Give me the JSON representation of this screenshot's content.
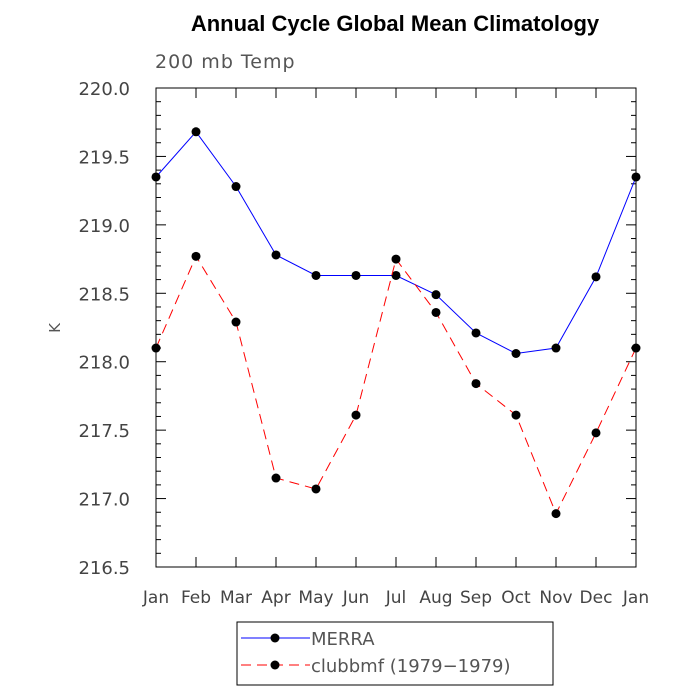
{
  "chart_data": {
    "type": "line",
    "title": "Annual Cycle Global Mean Climatology",
    "subtitle": "200 mb Temp",
    "xlabel": "",
    "ylabel": "K",
    "ylim": [
      216.5,
      220.0
    ],
    "yticks": [
      "216.5",
      "217.0",
      "217.5",
      "218.0",
      "218.5",
      "219.0",
      "219.5",
      "220.0"
    ],
    "categories": [
      "Jan",
      "Feb",
      "Mar",
      "Apr",
      "May",
      "Jun",
      "Jul",
      "Aug",
      "Sep",
      "Oct",
      "Nov",
      "Dec",
      "Jan"
    ],
    "grid": false,
    "legend_position": "bottom-center",
    "series": [
      {
        "name": "MERRA",
        "color": "#0000ff",
        "dash": "solid",
        "values": [
          219.35,
          219.68,
          219.28,
          218.78,
          218.63,
          218.63,
          218.63,
          218.49,
          218.21,
          218.06,
          218.1,
          218.62,
          219.35
        ]
      },
      {
        "name": "clubbmf (1979−1979)",
        "color": "#ff0000",
        "dash": "dashed",
        "values": [
          218.1,
          218.77,
          218.29,
          217.15,
          217.07,
          217.61,
          218.75,
          218.36,
          217.84,
          217.61,
          216.89,
          217.48,
          218.1
        ]
      }
    ]
  }
}
